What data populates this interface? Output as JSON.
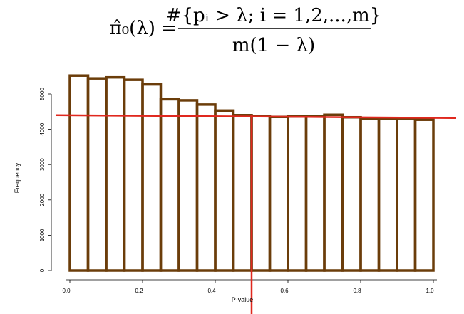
{
  "formula": {
    "lhs": "π̂₀(λ) =",
    "numerator": "#{pᵢ > λ; i = 1,2,...,m}",
    "denominator": "m(1 − λ)"
  },
  "colors": {
    "bar_stroke": "#6b3d0a",
    "reference_line": "#e0281e",
    "axis": "#000000"
  },
  "chart_data": {
    "type": "bar",
    "subtype": "histogram",
    "xlabel": "P-value",
    "ylabel": "Frequency",
    "xlim": [
      0.0,
      1.0
    ],
    "ylim": [
      0,
      5500
    ],
    "x_ticks": [
      "0.0",
      "0.2",
      "0.4",
      "0.6",
      "0.8",
      "1.0"
    ],
    "y_ticks": [
      "0",
      "1000",
      "2000",
      "3000",
      "4000",
      "5000"
    ],
    "bin_width": 0.05,
    "bin_edges": [
      0.0,
      0.05,
      0.1,
      0.15,
      0.2,
      0.25,
      0.3,
      0.35,
      0.4,
      0.45,
      0.5,
      0.55,
      0.6,
      0.65,
      0.7,
      0.75,
      0.8,
      0.85,
      0.9,
      0.95,
      1.0
    ],
    "values": [
      5520,
      5440,
      5470,
      5400,
      5270,
      4850,
      4820,
      4700,
      4530,
      4400,
      4380,
      4350,
      4360,
      4370,
      4410,
      4340,
      4290,
      4290,
      4310,
      4270
    ],
    "reference_line_y": 4400,
    "lambda_x": 0.5,
    "grid": false
  }
}
